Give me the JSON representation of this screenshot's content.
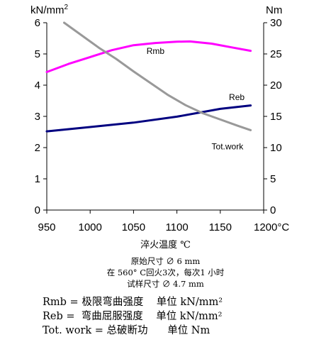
{
  "chart_data": {
    "type": "line",
    "y_left_label": "kN/mm",
    "y_left_label_sup": "2",
    "y_right_label": "Nm",
    "x_unit_label": "°C",
    "x_ticks": [
      950,
      1000,
      1050,
      1100,
      1150,
      1200
    ],
    "y_left_ticks": [
      0,
      1,
      2,
      3,
      4,
      5,
      6
    ],
    "y_right_ticks": [
      0,
      5,
      10,
      15,
      20,
      25,
      30
    ],
    "xlim": [
      950,
      1200
    ],
    "ylim_left": [
      0,
      6
    ],
    "ylim_right": [
      0,
      30
    ],
    "grid": false,
    "series": [
      {
        "name": "Rmb",
        "axis": "left",
        "color": "#ff00ff",
        "x": [
          950,
          975,
          1000,
          1025,
          1050,
          1075,
          1100,
          1115,
          1140,
          1165,
          1185
        ],
        "y": [
          4.42,
          4.68,
          4.9,
          5.12,
          5.28,
          5.35,
          5.39,
          5.4,
          5.33,
          5.2,
          5.1
        ]
      },
      {
        "name": "Reb",
        "axis": "left",
        "color": "#000080",
        "x": [
          950,
          1000,
          1050,
          1100,
          1150,
          1185
        ],
        "y": [
          2.52,
          2.66,
          2.8,
          2.99,
          3.24,
          3.35
        ]
      },
      {
        "name": "Tot.work",
        "axis": "right",
        "color": "#999999",
        "x": [
          970,
          990,
          1010,
          1030,
          1050,
          1070,
          1090,
          1110,
          1130,
          1150,
          1170,
          1185
        ],
        "y": [
          30,
          28,
          26,
          24.2,
          22.2,
          20.3,
          18.4,
          16.8,
          15.5,
          14.5,
          13.5,
          12.8
        ]
      }
    ]
  },
  "x_axis_title": "淬火温度 ℃",
  "notes": [
    "原始尺寸 ∅ 6 mm",
    "在 560° C回火3次，每次1 小时",
    "试样尺寸 ∅ 4.7 mm"
  ],
  "legend": [
    "Rmb = 极限弯曲强度    单位 kN/mm²",
    "Reb =  弯曲屈服强度    单位 kN/mm²",
    "Tot. work = 总破断功      单位 Nm"
  ]
}
